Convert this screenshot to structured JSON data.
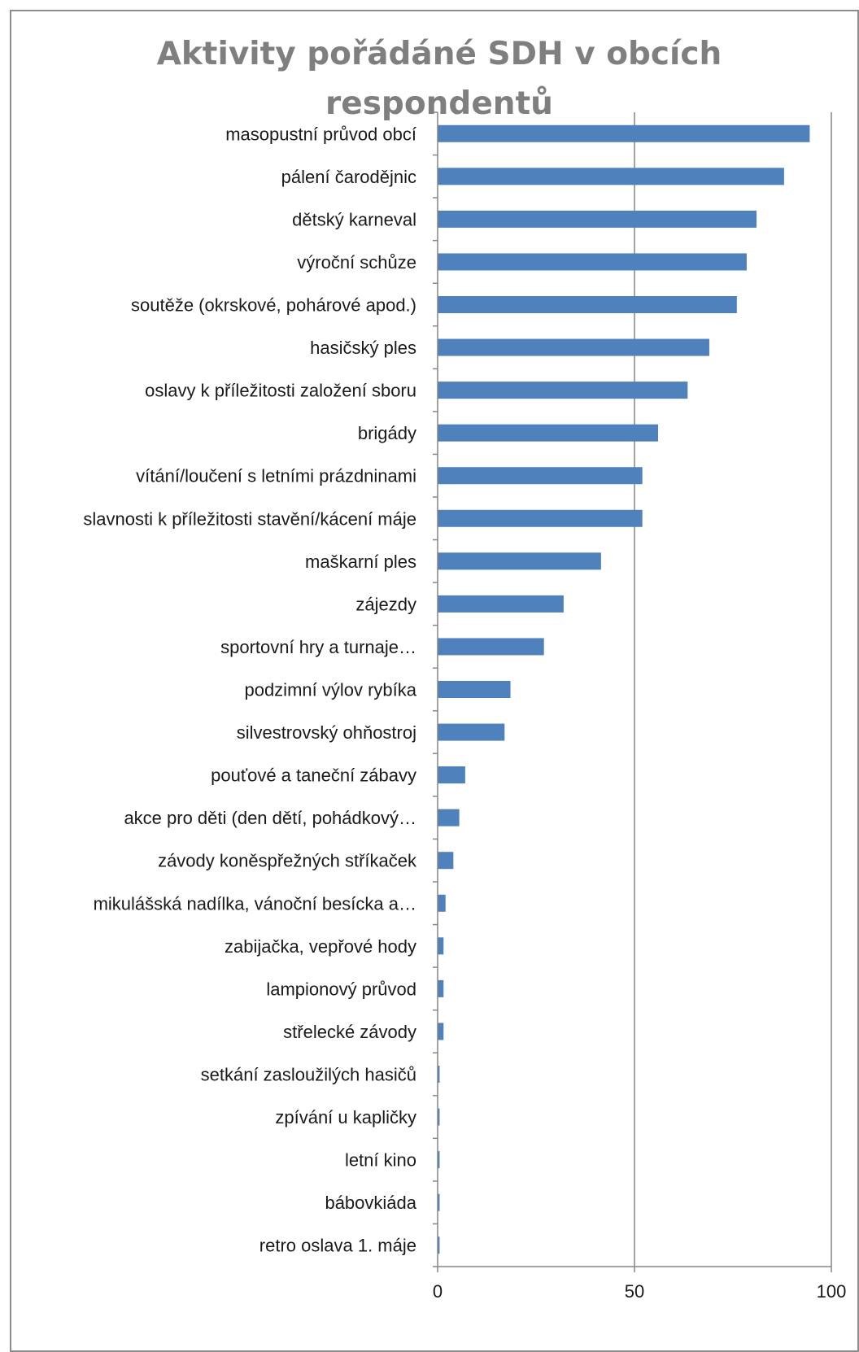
{
  "chart_data": {
    "type": "bar",
    "orientation": "horizontal",
    "title": "Aktivity pořádáné SDH v obcích respondentů",
    "xlabel": "",
    "ylabel": "",
    "xlim": [
      0,
      100
    ],
    "x_ticks": [
      0,
      50,
      100
    ],
    "grid": "vertical major gridlines",
    "legend": "none",
    "bar_color": "#4f81bd",
    "categories": [
      "masopustní průvod obcí",
      "pálení čarodějnic",
      "dětský karneval",
      "výroční schůze",
      "soutěže (okrskové, pohárové apod.)",
      "hasičský ples",
      "oslavy k příležitosti založení sboru",
      "brigády",
      "vítání/loučení s letními prázdninami",
      "slavnosti k příležitosti stavění/kácení máje",
      "maškarní ples",
      "zájezdy",
      "sportovní hry a turnaje…",
      "podzimní výlov rybíka",
      "silvestrovský ohňostroj",
      "pouťové a taneční zábavy",
      "akce pro děti (den dětí, pohádkový…",
      "závody koněspřežných stříkaček",
      "mikulášská nadílka, vánoční besícka a…",
      "zabijačka, vepřové hody",
      "lampionový průvod",
      "střelecké závody",
      "setkání zasloužilých hasičů",
      "zpívání u kapličky",
      "letní kino",
      "bábovkiáda",
      "retro oslava 1. máje"
    ],
    "values": [
      94.5,
      88,
      81,
      78.5,
      76,
      69,
      63.5,
      56,
      52,
      52,
      41.5,
      32,
      27,
      18.5,
      17,
      7,
      5.5,
      4,
      2,
      1.5,
      1.5,
      1.5,
      0.5,
      0.5,
      0.5,
      0.5,
      0.5
    ]
  }
}
